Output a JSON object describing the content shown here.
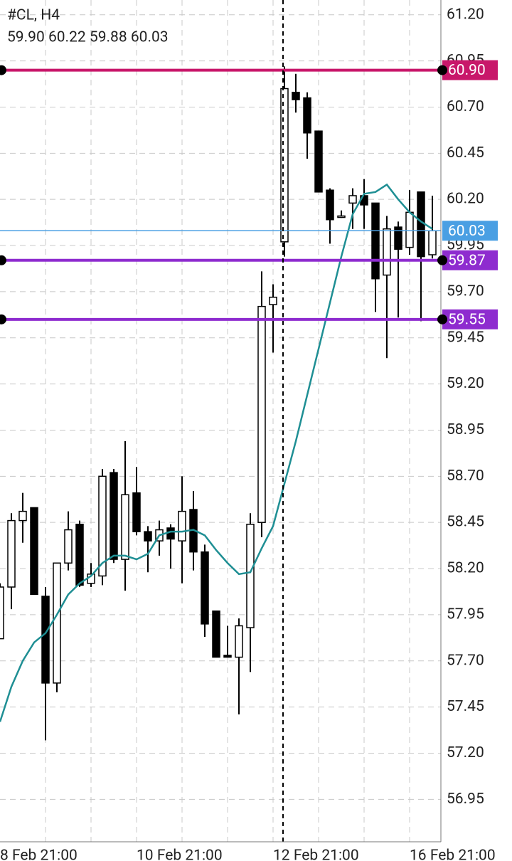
{
  "chart_data": {
    "type": "candlestick",
    "symbol": "#CL, H4",
    "ohlc_text": "59.90 60.22 59.88 60.03",
    "categories": [
      "8 Feb 21:00",
      null,
      null,
      null,
      null,
      null,
      null,
      null,
      null,
      null,
      null,
      null,
      "10 Feb 21:00",
      null,
      null,
      null,
      null,
      null,
      null,
      null,
      null,
      null,
      null,
      null,
      "12 Feb 21:00",
      null,
      null,
      null,
      null,
      null,
      null,
      null,
      null,
      null,
      null,
      null,
      "16 Feb 21:00",
      null,
      null
    ],
    "open": [
      57.82,
      58.1,
      58.46,
      58.53,
      58.05,
      57.58,
      58.23,
      58.44,
      58.12,
      58.16,
      58.72,
      58.25,
      58.61,
      58.4,
      58.35,
      58.42,
      58.35,
      58.52,
      58.29,
      57.97,
      57.73,
      57.72,
      57.88,
      58.45,
      59.63,
      59.97,
      60.78,
      60.75,
      60.57,
      60.25,
      60.11,
      60.18,
      60.22,
      60.18,
      59.79,
      60.05,
      59.94,
      60.24,
      59.9
    ],
    "high": [
      58.12,
      58.5,
      58.61,
      58.53,
      58.1,
      58.23,
      58.51,
      58.46,
      58.23,
      58.74,
      58.74,
      58.89,
      58.75,
      58.43,
      58.46,
      58.44,
      58.7,
      58.62,
      58.33,
      57.97,
      57.89,
      57.93,
      58.5,
      59.81,
      59.74,
      60.92,
      60.88,
      60.78,
      60.57,
      60.26,
      60.14,
      60.26,
      60.31,
      60.18,
      60.11,
      60.08,
      60.25,
      60.24,
      60.22
    ],
    "low": [
      57.82,
      57.98,
      58.34,
      58.06,
      57.27,
      57.53,
      58.19,
      58.1,
      58.1,
      58.11,
      58.23,
      58.08,
      58.38,
      58.18,
      58.27,
      58.2,
      58.12,
      58.19,
      57.83,
      57.72,
      57.72,
      57.41,
      57.64,
      58.37,
      59.37,
      59.89,
      60.67,
      60.42,
      60.24,
      59.96,
      60.1,
      60.04,
      60.04,
      59.59,
      59.34,
      59.56,
      59.9,
      59.54,
      59.88
    ],
    "close": [
      58.1,
      58.46,
      58.51,
      58.06,
      57.58,
      58.23,
      58.41,
      58.11,
      58.17,
      58.7,
      58.25,
      58.6,
      58.4,
      58.35,
      58.41,
      58.36,
      58.51,
      58.29,
      57.9,
      57.72,
      57.72,
      57.89,
      58.44,
      59.62,
      59.67,
      60.8,
      60.74,
      60.56,
      60.24,
      60.09,
      60.11,
      60.22,
      60.17,
      59.77,
      60.04,
      59.93,
      60.13,
      59.89,
      60.03
    ],
    "up_color": "#ffffff",
    "down_color": "#000000",
    "edge_color": "#000000",
    "ma": {
      "color": "#1f8f94",
      "values": [
        57.37,
        57.56,
        57.7,
        57.8,
        57.85,
        57.95,
        58.06,
        58.12,
        58.16,
        58.23,
        58.27,
        58.27,
        58.25,
        58.28,
        58.38,
        58.4,
        58.4,
        58.41,
        58.38,
        58.3,
        58.23,
        58.17,
        58.18,
        58.31,
        58.43,
        58.66,
        58.89,
        59.14,
        59.39,
        59.64,
        59.89,
        60.12,
        60.23,
        60.24,
        60.28,
        60.2,
        60.13,
        60.08,
        60.04
      ]
    },
    "hlines": [
      {
        "value": 60.9,
        "label": "60.90",
        "color": "#c8176a",
        "width": 4
      },
      {
        "value": 60.03,
        "label": "60.03",
        "color": "#4a9fe3",
        "width": 1.5
      },
      {
        "value": 59.87,
        "label": "59.87",
        "color": "#8e2ccf",
        "width": 4
      },
      {
        "value": 59.55,
        "label": "59.55",
        "color": "#8e2ccf",
        "width": 4
      }
    ],
    "ylim": [
      56.72,
      61.28
    ],
    "yticks": [
      {
        "value": 61.2,
        "label": "61.20"
      },
      60.95,
      {
        "value": 60.7,
        "label": "60.70"
      },
      60.45,
      {
        "value": 60.2,
        "label": "60.20"
      },
      59.95,
      {
        "value": 59.7,
        "label": "59.70"
      },
      59.45,
      {
        "value": 59.2,
        "label": "59.20"
      },
      58.95,
      {
        "value": 58.7,
        "label": "58.70"
      },
      58.45,
      {
        "value": 58.2,
        "label": "58.20"
      },
      57.95,
      {
        "value": 57.7,
        "label": "57.70"
      },
      57.45,
      {
        "value": 57.2,
        "label": "57.20"
      },
      56.95
    ],
    "grid": true
  }
}
